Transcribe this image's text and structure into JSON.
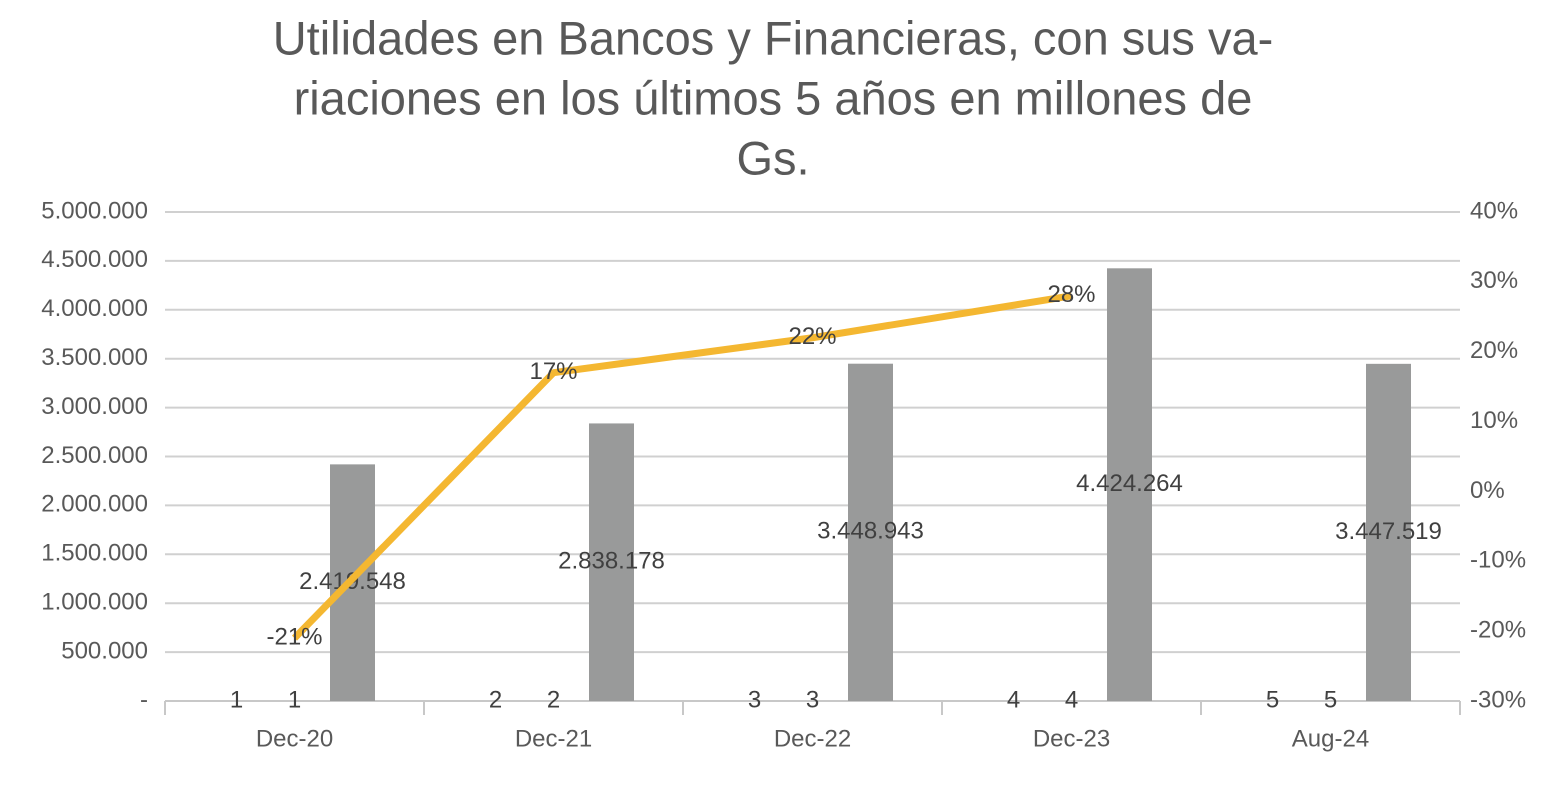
{
  "chart_data": {
    "type": "bar",
    "title": [
      "Utilidades en Bancos y Financieras, con sus va-",
      "riaciones en los últimos 5 años en millones de",
      "Gs."
    ],
    "categories": [
      "Dec-20",
      "Dec-21",
      "Dec-22",
      "Dec-23",
      "Aug-24"
    ],
    "series": [
      {
        "color": "#999a9a",
        "values": [
          1,
          2,
          3,
          4,
          5
        ]
      },
      {
        "color": "#999a9a",
        "values": [
          1,
          2,
          3,
          4,
          5
        ]
      },
      {
        "color": "#999a9a",
        "values": [
          2419548,
          2838178,
          3448943,
          4424264,
          3447519
        ],
        "value_labels": [
          "2.419.548",
          "2.838.178",
          "3.448.943",
          "4.424.264",
          "3.447.519"
        ]
      },
      {
        "type": "line",
        "axis": "y2",
        "color": "#f4b731",
        "values": [
          -21,
          17,
          22,
          28,
          null
        ],
        "value_labels": [
          "-21%",
          "17%",
          "22%",
          "28%",
          null
        ]
      }
    ],
    "ylim": [
      0,
      5000000
    ],
    "yticks": [
      {
        "value": 0,
        "label": "-"
      },
      {
        "value": 500000,
        "label": "500.000"
      },
      {
        "value": 1000000,
        "label": "1.000.000"
      },
      {
        "value": 1500000,
        "label": "1.500.000"
      },
      {
        "value": 2000000,
        "label": "2.000.000"
      },
      {
        "value": 2500000,
        "label": "2.500.000"
      },
      {
        "value": 3000000,
        "label": "3.000.000"
      },
      {
        "value": 3500000,
        "label": "3.500.000"
      },
      {
        "value": 4000000,
        "label": "4.000.000"
      },
      {
        "value": 4500000,
        "label": "4.500.000"
      },
      {
        "value": 5000000,
        "label": "5.000.000"
      }
    ],
    "y2lim": [
      -30,
      40
    ],
    "y2ticks": [
      {
        "value": -30,
        "label": "-30%"
      },
      {
        "value": -20,
        "label": "-20%"
      },
      {
        "value": -10,
        "label": "-10%"
      },
      {
        "value": 0,
        "label": "0%"
      },
      {
        "value": 10,
        "label": "10%"
      },
      {
        "value": 20,
        "label": "20%"
      },
      {
        "value": 30,
        "label": "30%"
      },
      {
        "value": 40,
        "label": "40%"
      }
    ],
    "grid": true
  }
}
